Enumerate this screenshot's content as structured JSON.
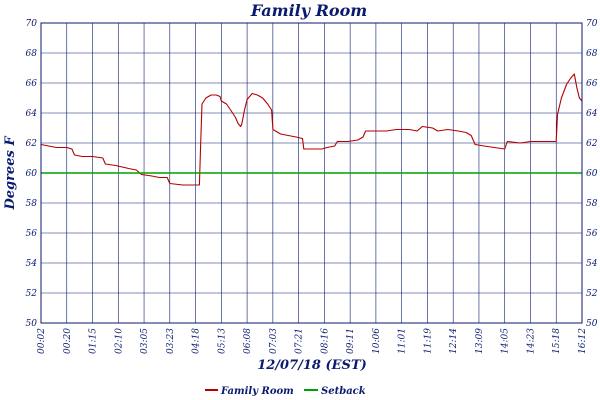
{
  "chart_data": {
    "type": "line",
    "title": "Family Room",
    "xlabel": "12/07/18 (EST)",
    "ylabel": "Degrees F",
    "ylim": [
      50,
      70
    ],
    "y_ticks": [
      50,
      52,
      54,
      56,
      58,
      60,
      62,
      64,
      66,
      68,
      70
    ],
    "secondary_y_axis": true,
    "grid": true,
    "legend": "bottom",
    "x_tick_labels": [
      "00:02",
      "00:20",
      "01:15",
      "02:10",
      "03:05",
      "03:23",
      "04:18",
      "05:13",
      "06:08",
      "07:03",
      "07:21",
      "08:16",
      "09:11",
      "10:06",
      "11:01",
      "11:19",
      "12:14",
      "13:09",
      "14:05",
      "14:23",
      "15:18",
      "16:12"
    ],
    "x_range": [
      0,
      21
    ],
    "series": [
      {
        "name": "Family Room",
        "color": "#b40000",
        "points": [
          [
            0.0,
            61.9
          ],
          [
            0.3,
            61.8
          ],
          [
            0.6,
            61.7
          ],
          [
            1.0,
            61.7
          ],
          [
            1.2,
            61.6
          ],
          [
            1.3,
            61.2
          ],
          [
            1.6,
            61.1
          ],
          [
            2.0,
            61.1
          ],
          [
            2.4,
            61.0
          ],
          [
            2.5,
            60.6
          ],
          [
            2.9,
            60.5
          ],
          [
            3.4,
            60.3
          ],
          [
            3.7,
            60.2
          ],
          [
            3.9,
            59.9
          ],
          [
            4.3,
            59.8
          ],
          [
            4.6,
            59.7
          ],
          [
            4.9,
            59.7
          ],
          [
            5.0,
            59.3
          ],
          [
            5.5,
            59.2
          ],
          [
            6.0,
            59.2
          ],
          [
            6.15,
            59.2
          ],
          [
            6.2,
            62.0
          ],
          [
            6.25,
            64.6
          ],
          [
            6.4,
            65.0
          ],
          [
            6.6,
            65.2
          ],
          [
            6.8,
            65.2
          ],
          [
            6.95,
            65.1
          ],
          [
            7.0,
            64.8
          ],
          [
            7.2,
            64.6
          ],
          [
            7.4,
            64.1
          ],
          [
            7.55,
            63.7
          ],
          [
            7.65,
            63.3
          ],
          [
            7.75,
            63.1
          ],
          [
            7.8,
            63.3
          ],
          [
            7.9,
            64.2
          ],
          [
            8.0,
            64.9
          ],
          [
            8.2,
            65.3
          ],
          [
            8.4,
            65.2
          ],
          [
            8.6,
            65.0
          ],
          [
            8.8,
            64.6
          ],
          [
            8.95,
            64.2
          ],
          [
            9.0,
            62.9
          ],
          [
            9.3,
            62.6
          ],
          [
            9.6,
            62.5
          ],
          [
            9.9,
            62.4
          ],
          [
            10.15,
            62.3
          ],
          [
            10.2,
            61.6
          ],
          [
            10.6,
            61.6
          ],
          [
            10.9,
            61.6
          ],
          [
            11.1,
            61.7
          ],
          [
            11.4,
            61.8
          ],
          [
            11.5,
            62.1
          ],
          [
            11.9,
            62.1
          ],
          [
            12.3,
            62.2
          ],
          [
            12.5,
            62.4
          ],
          [
            12.6,
            62.8
          ],
          [
            13.0,
            62.8
          ],
          [
            13.4,
            62.8
          ],
          [
            13.8,
            62.9
          ],
          [
            14.3,
            62.9
          ],
          [
            14.6,
            62.8
          ],
          [
            14.8,
            63.1
          ],
          [
            15.2,
            63.0
          ],
          [
            15.4,
            62.8
          ],
          [
            15.8,
            62.9
          ],
          [
            16.2,
            62.8
          ],
          [
            16.5,
            62.7
          ],
          [
            16.7,
            62.5
          ],
          [
            16.85,
            61.9
          ],
          [
            17.2,
            61.8
          ],
          [
            17.6,
            61.7
          ],
          [
            18.0,
            61.6
          ],
          [
            18.1,
            62.1
          ],
          [
            18.6,
            62.0
          ],
          [
            19.0,
            62.1
          ],
          [
            19.4,
            62.1
          ],
          [
            19.8,
            62.1
          ],
          [
            20.0,
            62.1
          ],
          [
            20.05,
            63.9
          ],
          [
            20.2,
            65.0
          ],
          [
            20.4,
            65.9
          ],
          [
            20.55,
            66.3
          ],
          [
            20.7,
            66.6
          ],
          [
            20.8,
            65.7
          ],
          [
            20.9,
            65.0
          ],
          [
            21.0,
            64.8
          ]
        ]
      },
      {
        "name": "Setback",
        "color": "#00a000",
        "points": [
          [
            0,
            60
          ],
          [
            21,
            60
          ]
        ]
      }
    ]
  }
}
